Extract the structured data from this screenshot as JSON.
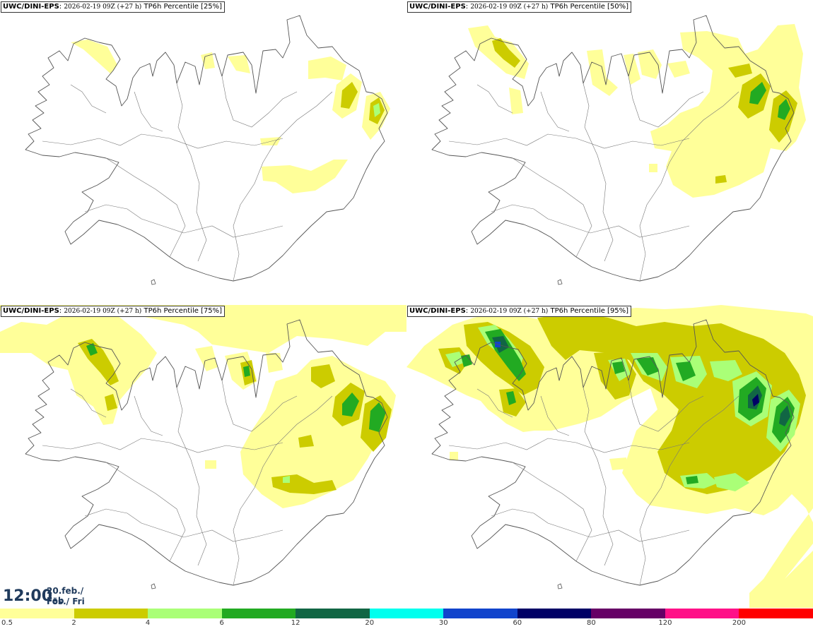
{
  "panels": [
    {
      "model": "UWC/DINI-EPS",
      "run": "2026-02-19 09Z (+27 h)",
      "label": "TP6h Percentile [25%]",
      "percentile": 25
    },
    {
      "model": "UWC/DINI-EPS",
      "run": "2026-02-19 09Z (+27 h)",
      "label": "TP6h Percentile [50%]",
      "percentile": 50
    },
    {
      "model": "UWC/DINI-EPS",
      "run": "2026-02-19 09Z (+27 h)",
      "label": "TP6h Percentile [75%]",
      "percentile": 75
    },
    {
      "model": "UWC/DINI-EPS",
      "run": "2026-02-19 09Z (+27 h)",
      "label": "TP6h Percentile [95%]",
      "percentile": 95
    }
  ],
  "valid": {
    "time": "12:00",
    "date": "20.feb./ Feb",
    "day": "Fös./ Fri"
  },
  "legend": {
    "ticks": [
      "0.5",
      "2",
      "4",
      "6",
      "12",
      "20",
      "30",
      "60",
      "80",
      "120",
      "200"
    ],
    "colors": [
      "#ffff99",
      "#cccc00",
      "#aaff77",
      "#22aa22",
      "#116644",
      "#00ffee",
      "#1144cc",
      "#000066",
      "#660066",
      "#ff1188",
      "#ff0000"
    ]
  },
  "colors": {
    "land_outline": "#555555",
    "title_text": "#1f3a5c"
  }
}
